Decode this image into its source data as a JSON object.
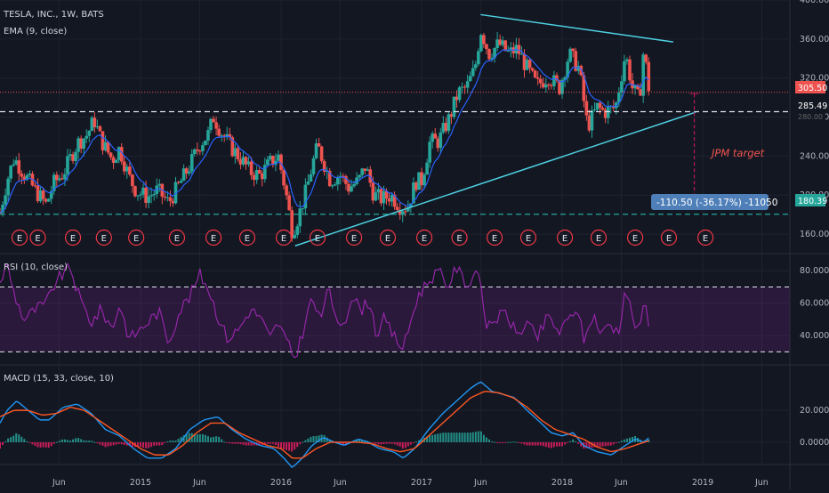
{
  "header": {
    "title": "TESLA, INC., 1W, BATS",
    "ema_label": "EMA (9, close)",
    "rsi_label": "RSI (10, close)",
    "macd_label": "MACD (15, 33, close, 10)"
  },
  "annotations": {
    "jpm_target": "JPM target",
    "measure": "-110.50 (-36.17%) -11050",
    "earnings_marker": "E"
  },
  "price_badges": {
    "last": "305.50",
    "resistance": "285.49",
    "target": "180.39",
    "hidden": "280.00"
  },
  "colors": {
    "background": "#131722",
    "up": "#26a69a",
    "down": "#ef5350",
    "ema": "#2962ff",
    "trend": "#4dd0e1",
    "rsi": "#9c27b0",
    "macd": "#2196f3",
    "signal": "#ff5722",
    "earnings": "#f23645"
  },
  "chart_data": [
    {
      "type": "candlestick",
      "title": "TESLA, INC., 1W, BATS",
      "ylim": [
        140,
        400
      ],
      "yticks": [
        160,
        200,
        240,
        280,
        320,
        360,
        400
      ],
      "ytick_labels": [
        "160.00",
        "200.00",
        "240.00",
        "280.00",
        "320.00",
        "360.00",
        "400.00"
      ],
      "xaxis_labels": [
        "Jun",
        "2015",
        "Jun",
        "2016",
        "Jun",
        "2017",
        "Jun",
        "2018",
        "Jun",
        "2019",
        "Jun"
      ],
      "xaxis_times": [
        2014.42,
        2015.0,
        2015.42,
        2016.0,
        2016.42,
        2017.0,
        2017.42,
        2018.0,
        2018.42,
        2019.0,
        2019.42
      ],
      "xlim": [
        2014.0,
        2019.62
      ],
      "close_path": [
        [
          2014.0,
          182
        ],
        [
          2014.05,
          215
        ],
        [
          2014.1,
          238
        ],
        [
          2014.17,
          222
        ],
        [
          2014.25,
          205
        ],
        [
          2014.33,
          190
        ],
        [
          2014.38,
          212
        ],
        [
          2014.45,
          222
        ],
        [
          2014.55,
          253
        ],
        [
          2014.62,
          262
        ],
        [
          2014.67,
          277
        ],
        [
          2014.72,
          256
        ],
        [
          2014.8,
          236
        ],
        [
          2014.85,
          248
        ],
        [
          2014.92,
          218
        ],
        [
          2014.97,
          204
        ],
        [
          2015.05,
          198
        ],
        [
          2015.12,
          205
        ],
        [
          2015.2,
          192
        ],
        [
          2015.28,
          212
        ],
        [
          2015.35,
          230
        ],
        [
          2015.42,
          252
        ],
        [
          2015.48,
          262
        ],
        [
          2015.52,
          280
        ],
        [
          2015.58,
          263
        ],
        [
          2015.65,
          248
        ],
        [
          2015.72,
          236
        ],
        [
          2015.78,
          224
        ],
        [
          2015.85,
          220
        ],
        [
          2015.92,
          233
        ],
        [
          2015.98,
          240
        ],
        [
          2016.03,
          206
        ],
        [
          2016.08,
          162
        ],
        [
          2016.13,
          181
        ],
        [
          2016.18,
          205
        ],
        [
          2016.22,
          230
        ],
        [
          2016.26,
          250
        ],
        [
          2016.3,
          235
        ],
        [
          2016.35,
          215
        ],
        [
          2016.42,
          221
        ],
        [
          2016.48,
          208
        ],
        [
          2016.55,
          214
        ],
        [
          2016.6,
          230
        ],
        [
          2016.66,
          200
        ],
        [
          2016.72,
          196
        ],
        [
          2016.78,
          200
        ],
        [
          2016.85,
          188
        ],
        [
          2016.9,
          188
        ],
        [
          2016.96,
          214
        ],
        [
          2017.0,
          215
        ],
        [
          2017.06,
          255
        ],
        [
          2017.12,
          255
        ],
        [
          2017.2,
          280
        ],
        [
          2017.26,
          305
        ],
        [
          2017.32,
          310
        ],
        [
          2017.38,
          330
        ],
        [
          2017.42,
          370
        ],
        [
          2017.48,
          345
        ],
        [
          2017.55,
          355
        ],
        [
          2017.62,
          345
        ],
        [
          2017.68,
          350
        ],
        [
          2017.75,
          330
        ],
        [
          2017.82,
          312
        ],
        [
          2017.9,
          322
        ],
        [
          2017.98,
          310
        ],
        [
          2018.05,
          345
        ],
        [
          2018.12,
          330
        ],
        [
          2018.18,
          270
        ],
        [
          2018.25,
          290
        ],
        [
          2018.3,
          285
        ],
        [
          2018.38,
          290
        ],
        [
          2018.45,
          345
        ],
        [
          2018.5,
          310
        ],
        [
          2018.55,
          297
        ],
        [
          2018.58,
          350
        ],
        [
          2018.62,
          305
        ]
      ],
      "hlines": [
        285.49,
        180.39,
        305.5
      ],
      "trendlines": [
        {
          "from": [
            2017.42,
            385
          ],
          "to": [
            2018.79,
            357
          ]
        },
        {
          "from": [
            2016.1,
            148
          ],
          "to": [
            2018.95,
            285
          ]
        }
      ],
      "measure_from": [
        2018.94,
        304
      ],
      "measure_to": [
        2018.94,
        194
      ],
      "earnings_times": [
        2014.0,
        2014.13,
        2014.38,
        2014.6,
        2014.83,
        2015.12,
        2015.38,
        2015.62,
        2015.88,
        2016.12,
        2016.38,
        2016.62,
        2016.88,
        2017.13,
        2017.38,
        2017.62,
        2017.88,
        2018.12,
        2018.38,
        2018.62,
        2018.88
      ]
    },
    {
      "type": "line",
      "title": "RSI (10, close)",
      "ylim": [
        22,
        90
      ],
      "yticks": [
        40,
        60,
        80
      ],
      "ytick_labels": [
        "40.0000",
        "60.0000",
        "80.0000"
      ],
      "bands": [
        30,
        70
      ],
      "path": [
        [
          2014.0,
          72
        ],
        [
          2014.05,
          85
        ],
        [
          2014.1,
          66
        ],
        [
          2014.17,
          50
        ],
        [
          2014.25,
          56
        ],
        [
          2014.33,
          60
        ],
        [
          2014.4,
          74
        ],
        [
          2014.5,
          82
        ],
        [
          2014.57,
          62
        ],
        [
          2014.65,
          48
        ],
        [
          2014.72,
          56
        ],
        [
          2014.8,
          44
        ],
        [
          2014.85,
          60
        ],
        [
          2014.92,
          38
        ],
        [
          2015.0,
          44
        ],
        [
          2015.07,
          50
        ],
        [
          2015.13,
          55
        ],
        [
          2015.2,
          36
        ],
        [
          2015.28,
          56
        ],
        [
          2015.35,
          64
        ],
        [
          2015.42,
          78
        ],
        [
          2015.48,
          70
        ],
        [
          2015.55,
          52
        ],
        [
          2015.62,
          38
        ],
        [
          2015.7,
          44
        ],
        [
          2015.78,
          56
        ],
        [
          2015.85,
          52
        ],
        [
          2015.92,
          38
        ],
        [
          2015.98,
          48
        ],
        [
          2016.05,
          34
        ],
        [
          2016.1,
          26
        ],
        [
          2016.16,
          44
        ],
        [
          2016.22,
          64
        ],
        [
          2016.28,
          48
        ],
        [
          2016.33,
          72
        ],
        [
          2016.38,
          50
        ],
        [
          2016.45,
          48
        ],
        [
          2016.5,
          64
        ],
        [
          2016.57,
          56
        ],
        [
          2016.63,
          62
        ],
        [
          2016.68,
          40
        ],
        [
          2016.73,
          50
        ],
        [
          2016.8,
          40
        ],
        [
          2016.87,
          32
        ],
        [
          2016.92,
          48
        ],
        [
          2016.97,
          64
        ],
        [
          2017.05,
          74
        ],
        [
          2017.12,
          80
        ],
        [
          2017.18,
          70
        ],
        [
          2017.25,
          82
        ],
        [
          2017.3,
          74
        ],
        [
          2017.35,
          72
        ],
        [
          2017.4,
          85
        ],
        [
          2017.45,
          46
        ],
        [
          2017.52,
          50
        ],
        [
          2017.6,
          54
        ],
        [
          2017.68,
          40
        ],
        [
          2017.75,
          48
        ],
        [
          2017.82,
          38
        ],
        [
          2017.9,
          52
        ],
        [
          2017.98,
          42
        ],
        [
          2018.05,
          50
        ],
        [
          2018.1,
          58
        ],
        [
          2018.16,
          36
        ],
        [
          2018.22,
          54
        ],
        [
          2018.28,
          40
        ],
        [
          2018.33,
          48
        ],
        [
          2018.4,
          42
        ],
        [
          2018.45,
          70
        ],
        [
          2018.5,
          52
        ],
        [
          2018.55,
          40
        ],
        [
          2018.58,
          62
        ],
        [
          2018.62,
          48
        ]
      ]
    },
    {
      "type": "macd",
      "title": "MACD (15, 33, close, 10)",
      "ylim": [
        -14,
        48
      ],
      "yticks": [
        0,
        20
      ],
      "ytick_labels": [
        "0.0000",
        "20.0000"
      ],
      "macd_path": [
        [
          2014.0,
          12
        ],
        [
          2014.05,
          20
        ],
        [
          2014.12,
          26
        ],
        [
          2014.2,
          20
        ],
        [
          2014.28,
          14
        ],
        [
          2014.35,
          14
        ],
        [
          2014.45,
          22
        ],
        [
          2014.55,
          24
        ],
        [
          2014.65,
          18
        ],
        [
          2014.75,
          8
        ],
        [
          2014.85,
          4
        ],
        [
          2014.95,
          -4
        ],
        [
          2015.05,
          -10
        ],
        [
          2015.15,
          -10
        ],
        [
          2015.25,
          -4
        ],
        [
          2015.35,
          8
        ],
        [
          2015.45,
          14
        ],
        [
          2015.55,
          16
        ],
        [
          2015.65,
          8
        ],
        [
          2015.75,
          2
        ],
        [
          2015.85,
          -2
        ],
        [
          2015.95,
          -4
        ],
        [
          2016.02,
          -10
        ],
        [
          2016.08,
          -16
        ],
        [
          2016.15,
          -10
        ],
        [
          2016.22,
          -2
        ],
        [
          2016.3,
          3
        ],
        [
          2016.38,
          0
        ],
        [
          2016.45,
          -2
        ],
        [
          2016.55,
          2
        ],
        [
          2016.62,
          0
        ],
        [
          2016.7,
          -4
        ],
        [
          2016.8,
          -6
        ],
        [
          2016.87,
          -10
        ],
        [
          2016.95,
          -4
        ],
        [
          2017.05,
          8
        ],
        [
          2017.15,
          18
        ],
        [
          2017.25,
          26
        ],
        [
          2017.35,
          34
        ],
        [
          2017.42,
          38
        ],
        [
          2017.5,
          32
        ],
        [
          2017.58,
          30
        ],
        [
          2017.66,
          28
        ],
        [
          2017.75,
          20
        ],
        [
          2017.85,
          12
        ],
        [
          2017.92,
          6
        ],
        [
          2018.0,
          4
        ],
        [
          2018.08,
          6
        ],
        [
          2018.15,
          -2
        ],
        [
          2018.25,
          -6
        ],
        [
          2018.35,
          -8
        ],
        [
          2018.45,
          -2
        ],
        [
          2018.52,
          2
        ],
        [
          2018.58,
          0
        ],
        [
          2018.62,
          3
        ]
      ],
      "signal_path": [
        [
          2014.0,
          16
        ],
        [
          2014.1,
          20
        ],
        [
          2014.2,
          20
        ],
        [
          2014.3,
          17
        ],
        [
          2014.4,
          18
        ],
        [
          2014.5,
          22
        ],
        [
          2014.6,
          20
        ],
        [
          2014.7,
          14
        ],
        [
          2014.8,
          8
        ],
        [
          2014.9,
          2
        ],
        [
          2015.0,
          -4
        ],
        [
          2015.1,
          -8
        ],
        [
          2015.2,
          -8
        ],
        [
          2015.3,
          -2
        ],
        [
          2015.4,
          6
        ],
        [
          2015.5,
          12
        ],
        [
          2015.6,
          12
        ],
        [
          2015.7,
          6
        ],
        [
          2015.8,
          2
        ],
        [
          2015.9,
          -2
        ],
        [
          2016.0,
          -4
        ],
        [
          2016.08,
          -10
        ],
        [
          2016.15,
          -10
        ],
        [
          2016.25,
          -4
        ],
        [
          2016.35,
          0
        ],
        [
          2016.45,
          0
        ],
        [
          2016.55,
          0
        ],
        [
          2016.65,
          -1
        ],
        [
          2016.75,
          -4
        ],
        [
          2016.85,
          -6
        ],
        [
          2016.95,
          -4
        ],
        [
          2017.05,
          4
        ],
        [
          2017.15,
          12
        ],
        [
          2017.25,
          20
        ],
        [
          2017.35,
          28
        ],
        [
          2017.45,
          32
        ],
        [
          2017.55,
          31
        ],
        [
          2017.65,
          28
        ],
        [
          2017.75,
          22
        ],
        [
          2017.85,
          14
        ],
        [
          2017.95,
          8
        ],
        [
          2018.05,
          5
        ],
        [
          2018.15,
          2
        ],
        [
          2018.25,
          -3
        ],
        [
          2018.35,
          -6
        ],
        [
          2018.45,
          -4
        ],
        [
          2018.55,
          -1
        ],
        [
          2018.62,
          1
        ]
      ]
    }
  ]
}
